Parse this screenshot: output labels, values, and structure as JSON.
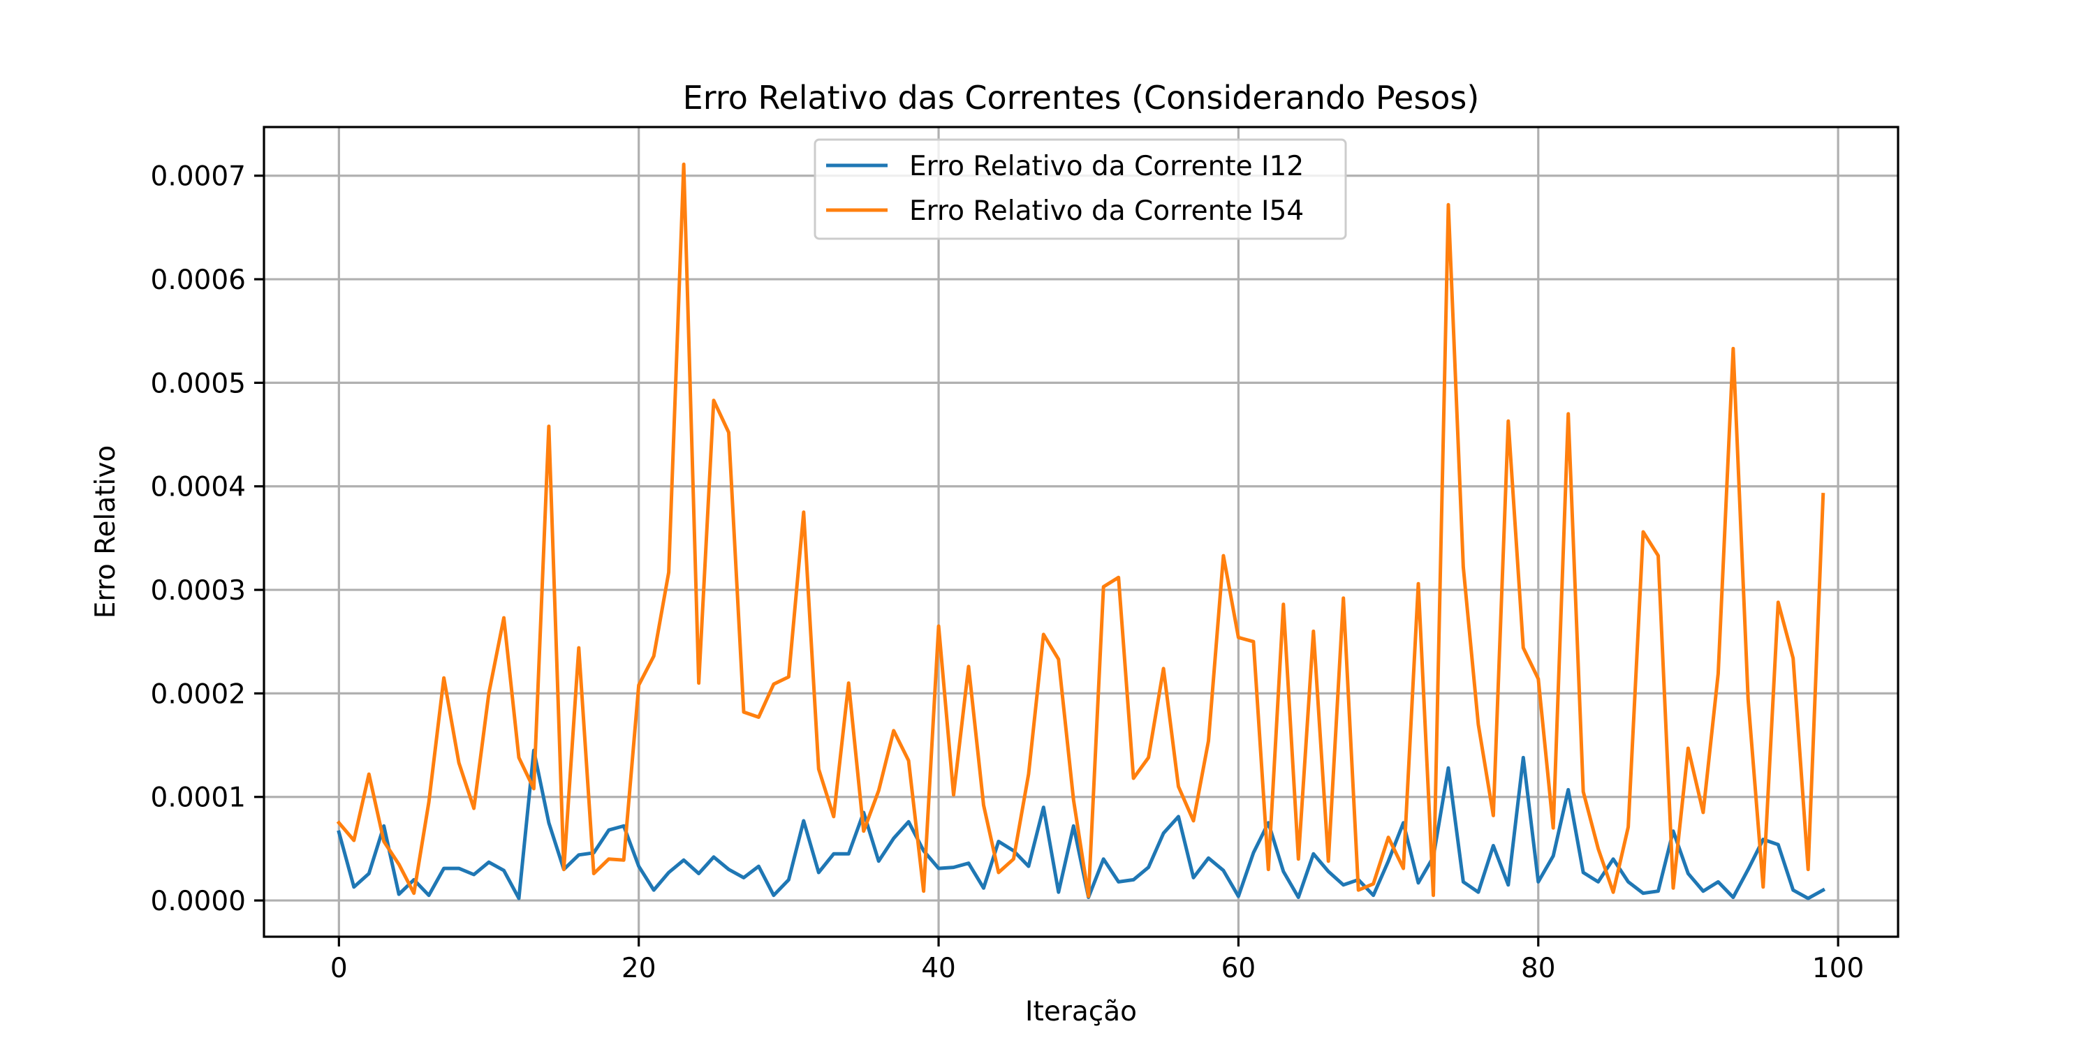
{
  "chart_data": {
    "type": "line",
    "title": "Erro Relativo das Correntes (Considerando Pesos)",
    "xlabel": "Iteração",
    "ylabel": "Erro Relativo",
    "xlim": [
      -5,
      104
    ],
    "ylim": [
      -3.5e-05,
      0.000747
    ],
    "xticks": [
      0,
      20,
      40,
      60,
      80,
      100
    ],
    "xtick_labels": [
      "0",
      "20",
      "40",
      "60",
      "80",
      "100"
    ],
    "yticks": [
      0,
      0.0001,
      0.0002,
      0.0003,
      0.0004,
      0.0005,
      0.0006,
      0.0007
    ],
    "ytick_labels": [
      "0.0000",
      "0.0001",
      "0.0002",
      "0.0003",
      "0.0004",
      "0.0005",
      "0.0006",
      "0.0007"
    ],
    "grid": true,
    "legend_position": "upper-center",
    "series": [
      {
        "name": "Erro Relativo da Corrente I12",
        "color": "#1f77b4",
        "values": [
          6.6e-05,
          1.3e-05,
          2.6e-05,
          7.2e-05,
          6e-06,
          2e-05,
          5e-06,
          3.1e-05,
          3.1e-05,
          2.5e-05,
          3.7e-05,
          2.9e-05,
          2e-06,
          0.000145,
          7.5e-05,
          3e-05,
          4.4e-05,
          4.6e-05,
          6.8e-05,
          7.2e-05,
          3.3e-05,
          1e-05,
          2.7e-05,
          3.9e-05,
          2.6e-05,
          4.2e-05,
          3e-05,
          2.2e-05,
          3.3e-05,
          5e-06,
          2e-05,
          7.7e-05,
          2.7e-05,
          4.5e-05,
          4.5e-05,
          8.5e-05,
          3.8e-05,
          6e-05,
          7.6e-05,
          4.8e-05,
          3.1e-05,
          3.2e-05,
          3.6e-05,
          1.2e-05,
          5.7e-05,
          4.8e-05,
          3.3e-05,
          9e-05,
          8e-06,
          7.2e-05,
          3e-06,
          4e-05,
          1.8e-05,
          2e-05,
          3.2e-05,
          6.5e-05,
          8.1e-05,
          2.2e-05,
          4.1e-05,
          2.9e-05,
          4e-06,
          4.6e-05,
          7.5e-05,
          2.8e-05,
          3e-06,
          4.5e-05,
          2.8e-05,
          1.5e-05,
          2e-05,
          5e-06,
          3.8e-05,
          7.5e-05,
          1.7e-05,
          4.2e-05,
          0.000128,
          1.8e-05,
          8e-06,
          5.3e-05,
          1.5e-05,
          0.000138,
          1.8e-05,
          4.3e-05,
          0.000107,
          2.7e-05,
          1.8e-05,
          4e-05,
          1.8e-05,
          7e-06,
          9e-06,
          6.7e-05,
          2.6e-05,
          9e-06,
          1.8e-05,
          3e-06,
          3e-05,
          5.9e-05,
          5.4e-05,
          1e-05,
          2e-06,
          1e-05
        ]
      },
      {
        "name": "Erro Relativo da Corrente I54",
        "color": "#ff7f0e",
        "values": [
          7.5e-05,
          5.8e-05,
          0.000122,
          5.7e-05,
          3.5e-05,
          7e-06,
          9.5e-05,
          0.000215,
          0.000133,
          8.9e-05,
          0.0002,
          0.000273,
          0.000138,
          0.000108,
          0.000458,
          3e-05,
          0.000244,
          2.6e-05,
          4e-05,
          3.9e-05,
          0.000208,
          0.000236,
          0.000317,
          0.000711,
          0.00021,
          0.000483,
          0.000452,
          0.000182,
          0.000177,
          0.000209,
          0.000216,
          0.000375,
          0.000127,
          8.1e-05,
          0.00021,
          6.7e-05,
          0.000106,
          0.000164,
          0.000135,
          9e-06,
          0.000265,
          0.000102,
          0.000226,
          9.2e-05,
          2.7e-05,
          4e-05,
          0.000122,
          0.000257,
          0.000233,
          9.7e-05,
          4e-06,
          0.000303,
          0.000312,
          0.000118,
          0.000138,
          0.000224,
          0.00011,
          7.7e-05,
          0.000154,
          0.000333,
          0.000254,
          0.00025,
          3e-05,
          0.000286,
          4e-05,
          0.00026,
          3.8e-05,
          0.000292,
          1e-05,
          1.6e-05,
          6.1e-05,
          3.1e-05,
          0.000306,
          5e-06,
          0.000672,
          0.000322,
          0.00017,
          8.2e-05,
          0.000463,
          0.000244,
          0.000214,
          7e-05,
          0.00047,
          0.000105,
          5e-05,
          8e-06,
          7.1e-05,
          0.000356,
          0.000333,
          1.2e-05,
          0.000147,
          8.5e-05,
          0.000219,
          0.000533,
          0.000194,
          1.3e-05,
          0.000288,
          0.000234,
          3e-05,
          0.000392
        ]
      }
    ]
  }
}
